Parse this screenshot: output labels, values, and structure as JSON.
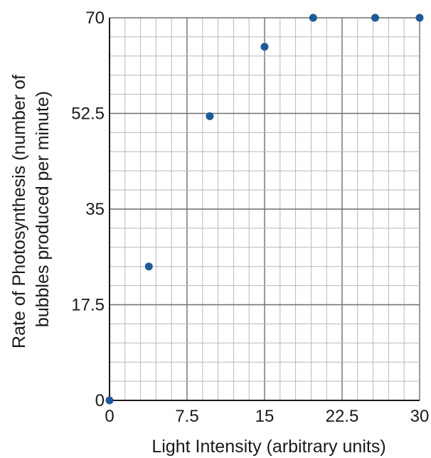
{
  "chart_data": {
    "type": "scatter",
    "title": "",
    "xlabel": "Light Intensity (arbitrary units)",
    "ylabel_lines": [
      "Rate of Photosynthesis (number of",
      "bubbles produced per minute)"
    ],
    "xlim": [
      0,
      30
    ],
    "ylim": [
      0,
      70
    ],
    "x_ticks": [
      0,
      7.5,
      15,
      22.5,
      30
    ],
    "y_ticks": [
      0,
      17.5,
      35,
      52.5,
      70
    ],
    "x_tick_labels": [
      "0",
      "7.5",
      "15",
      "22.5",
      "30"
    ],
    "y_tick_labels": [
      "0",
      "17.5",
      "35",
      "52.5",
      "70"
    ],
    "minor_divisions_per_major": 5,
    "grid": true,
    "marker_color": "#1f5a9a",
    "points": [
      {
        "x": 0,
        "y": 0
      },
      {
        "x": 3.8,
        "y": 24.5
      },
      {
        "x": 9.7,
        "y": 52
      },
      {
        "x": 15,
        "y": 64.7
      },
      {
        "x": 19.7,
        "y": 70
      },
      {
        "x": 25.7,
        "y": 70
      },
      {
        "x": 30,
        "y": 70
      }
    ]
  }
}
